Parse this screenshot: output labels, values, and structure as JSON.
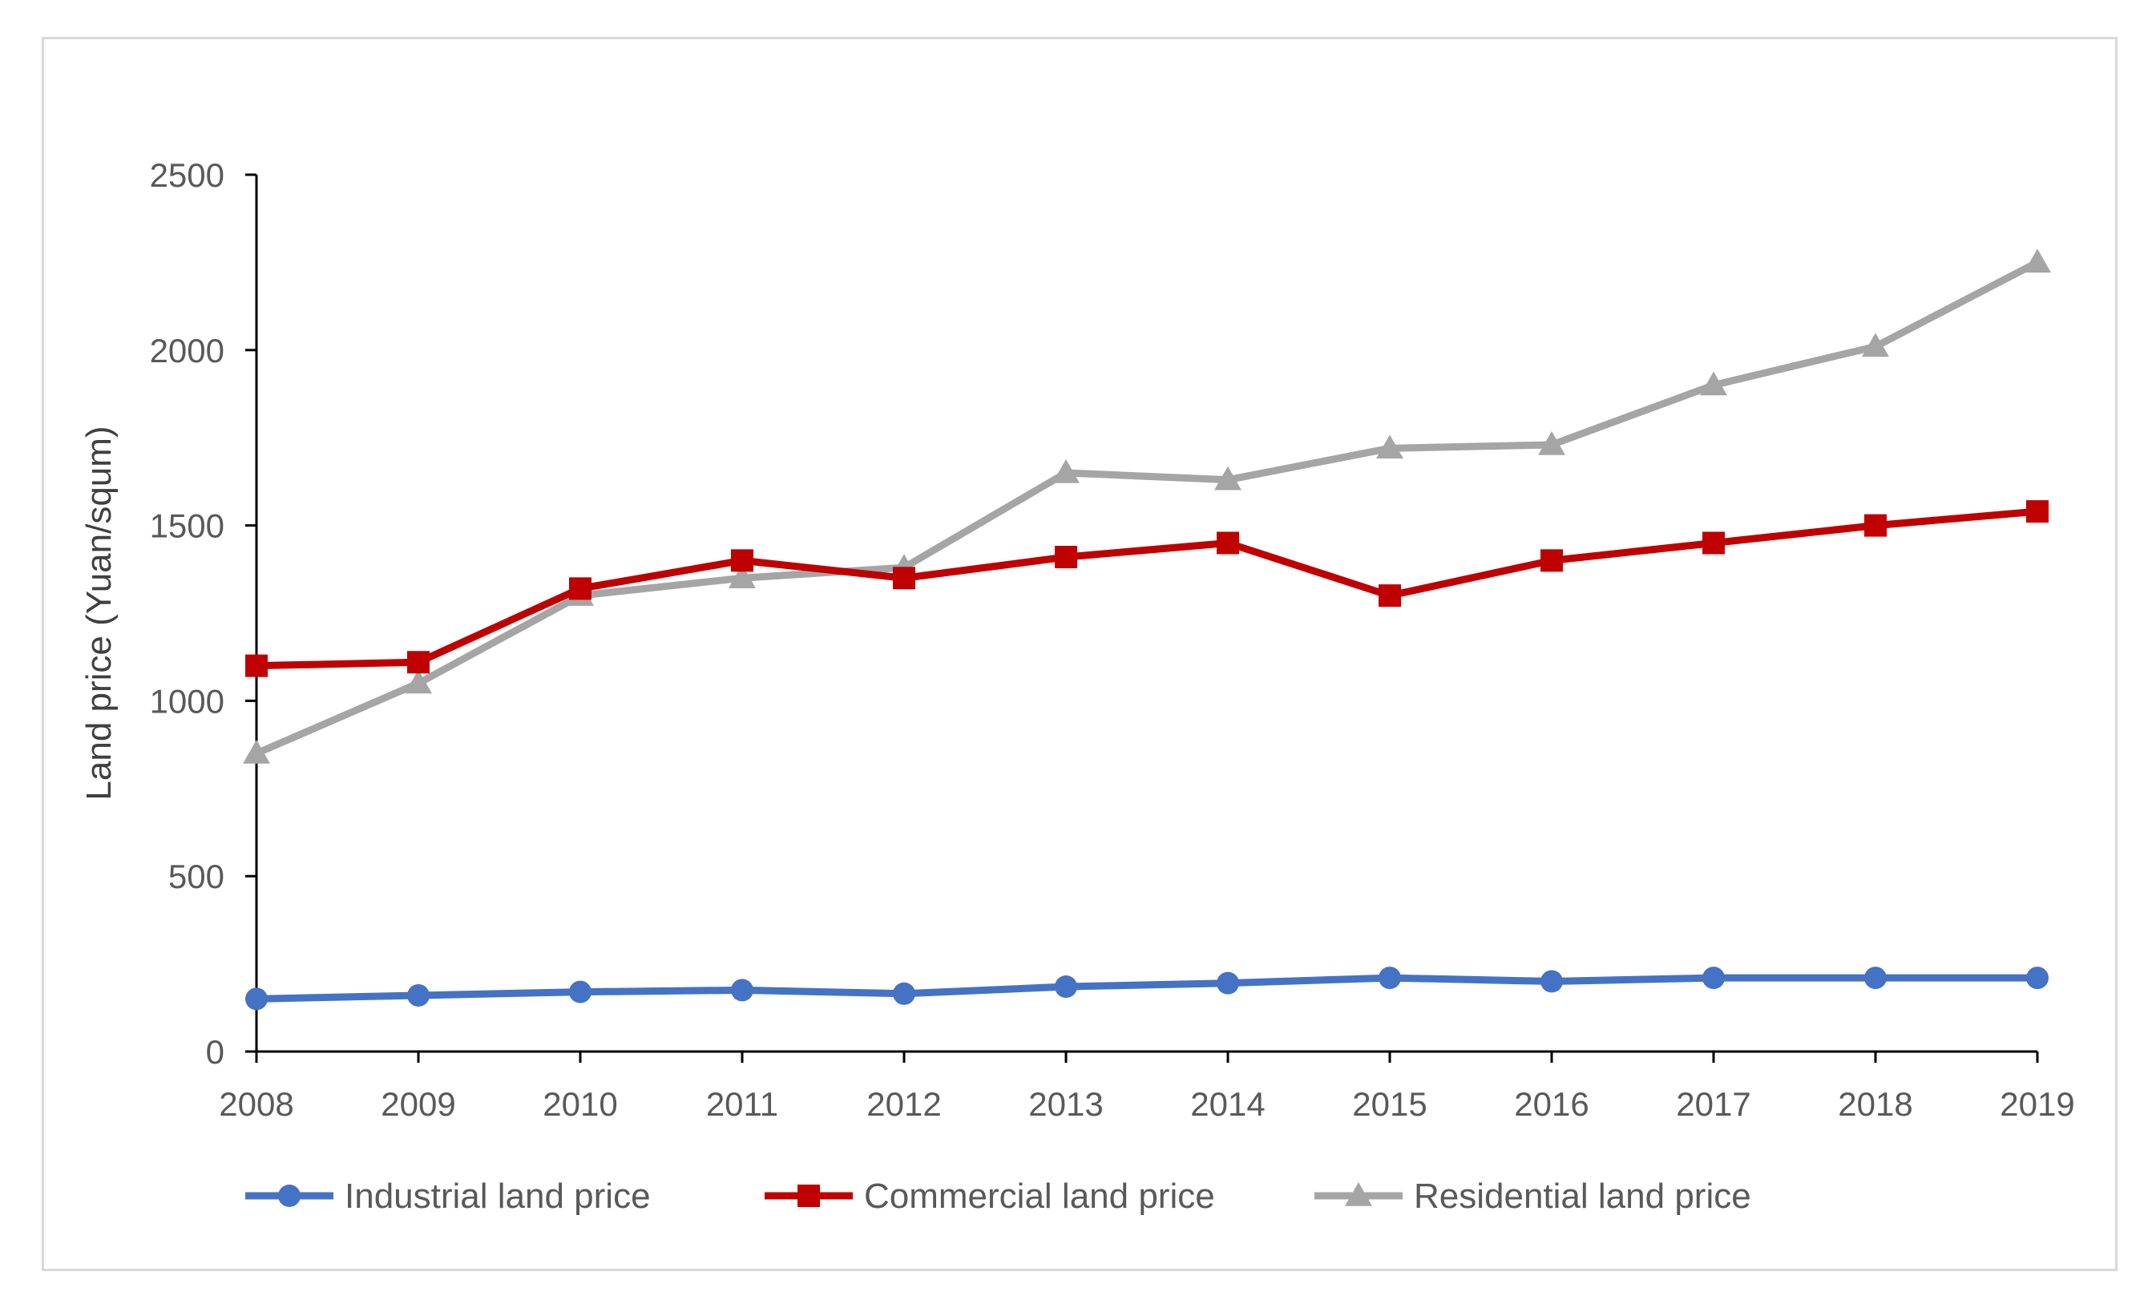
{
  "chart_data": {
    "type": "line",
    "title": "",
    "xlabel": "",
    "ylabel": "Land price (Yuan/squm)",
    "x": [
      "2008",
      "2009",
      "2010",
      "2011",
      "2012",
      "2013",
      "2014",
      "2015",
      "2016",
      "2017",
      "2018",
      "2019"
    ],
    "ylim": [
      0,
      2500
    ],
    "yticks": [
      "0",
      "500",
      "1000",
      "1500",
      "2000",
      "2500"
    ],
    "grid": false,
    "legend_position": "bottom",
    "series": [
      {
        "name": "Industrial land price",
        "color": "#4472c4",
        "marker": "circle",
        "values": [
          150,
          160,
          170,
          175,
          165,
          185,
          195,
          210,
          200,
          210,
          210,
          210
        ]
      },
      {
        "name": "Commercial land price",
        "color": "#c00000",
        "marker": "square",
        "values": [
          1100,
          1110,
          1320,
          1400,
          1350,
          1410,
          1450,
          1300,
          1400,
          1450,
          1500,
          1540
        ]
      },
      {
        "name": "Residential land price",
        "color": "#a5a5a5",
        "marker": "triangle",
        "values": [
          850,
          1050,
          1300,
          1350,
          1380,
          1650,
          1630,
          1720,
          1730,
          1900,
          2010,
          2250
        ]
      }
    ]
  }
}
